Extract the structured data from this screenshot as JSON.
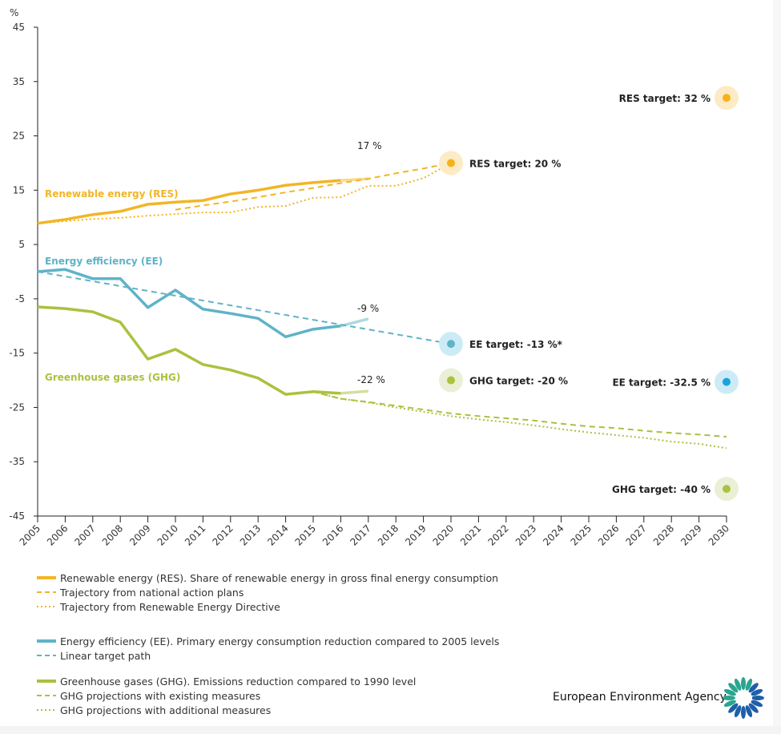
{
  "chart_data": {
    "type": "line",
    "ylabel": "%",
    "ylim": [
      -45,
      45
    ],
    "yticks": [
      45,
      35,
      25,
      15,
      5,
      -5,
      -15,
      -25,
      -35,
      -45
    ],
    "xlim": [
      2005,
      2030
    ],
    "x_ticks": [
      2005,
      2006,
      2007,
      2008,
      2009,
      2010,
      2011,
      2012,
      2013,
      2014,
      2015,
      2016,
      2017,
      2018,
      2019,
      2020,
      2021,
      2022,
      2023,
      2024,
      2025,
      2026,
      2027,
      2028,
      2029,
      2030
    ],
    "grid": false,
    "series": [
      {
        "name": "Renewable energy (RES). Share of renewable energy in gross final energy consumption",
        "label": "Renewable energy (RES)",
        "color": "#f2b527",
        "style": "solid",
        "x": [
          2005,
          2006,
          2007,
          2008,
          2009,
          2010,
          2011,
          2012,
          2013,
          2014,
          2015,
          2016,
          2017
        ],
        "y": [
          8.9,
          9.6,
          10.5,
          11.1,
          12.4,
          12.8,
          13.1,
          14.3,
          15.0,
          15.9,
          16.4,
          16.8,
          17.1
        ],
        "provisional_last": true
      },
      {
        "name": "Trajectory from national action plans",
        "color": "#f2b527",
        "style": "dashed",
        "x": [
          2010,
          2011,
          2012,
          2013,
          2014,
          2015,
          2016,
          2017,
          2018,
          2019,
          2020
        ],
        "y": [
          11.4,
          12.2,
          12.9,
          13.7,
          14.6,
          15.4,
          16.3,
          17.1,
          18.1,
          19.0,
          20.0
        ]
      },
      {
        "name": "Trajectory from Renewable Energy Directive",
        "color": "#f2b527",
        "style": "dotted",
        "x": [
          2005,
          2006,
          2007,
          2008,
          2009,
          2010,
          2011,
          2012,
          2013,
          2014,
          2015,
          2016,
          2017,
          2018,
          2019,
          2020
        ],
        "y": [
          8.9,
          9.3,
          9.7,
          9.9,
          10.3,
          10.6,
          10.9,
          10.9,
          11.9,
          12.1,
          13.6,
          13.7,
          15.8,
          15.8,
          17.2,
          20.0
        ]
      },
      {
        "name": "Energy efficiency (EE). Primary energy consumption reduction compared to 2005 levels",
        "label": "Energy efficiency (EE)",
        "color": "#5fb3c7",
        "style": "solid",
        "x": [
          2005,
          2006,
          2007,
          2008,
          2009,
          2010,
          2011,
          2012,
          2013,
          2014,
          2015,
          2016,
          2017
        ],
        "y": [
          0,
          0.4,
          -1.3,
          -1.3,
          -6.6,
          -3.4,
          -6.9,
          -7.7,
          -8.6,
          -12.0,
          -10.6,
          -10.0,
          -8.7
        ],
        "provisional_last": true
      },
      {
        "name": "Linear target path",
        "color": "#5fb3c7",
        "style": "dashed",
        "x": [
          2005,
          2020
        ],
        "y": [
          0,
          -13.3
        ]
      },
      {
        "name": "Greenhouse gases (GHG). Emissions reduction compared to 1990 level",
        "label": "Greenhouse gases (GHG)",
        "color": "#a9c23f",
        "style": "solid",
        "x": [
          2005,
          2006,
          2007,
          2008,
          2009,
          2010,
          2011,
          2012,
          2013,
          2014,
          2015,
          2016,
          2017
        ],
        "y": [
          -6.5,
          -6.8,
          -7.4,
          -9.3,
          -16.1,
          -14.3,
          -17.1,
          -18.1,
          -19.6,
          -22.6,
          -22.1,
          -22.4,
          -22.0
        ],
        "provisional_last": true
      },
      {
        "name": "GHG projections with existing measures",
        "color": "#a9c23f",
        "style": "dashed",
        "x": [
          2015,
          2016,
          2017,
          2018,
          2019,
          2020,
          2021,
          2022,
          2023,
          2024,
          2025,
          2026,
          2027,
          2028,
          2029,
          2030
        ],
        "y": [
          -22.1,
          -23.4,
          -24.0,
          -24.7,
          -25.4,
          -26.1,
          -26.6,
          -27.0,
          -27.4,
          -28.0,
          -28.5,
          -28.8,
          -29.3,
          -29.7,
          -30.0,
          -30.4
        ]
      },
      {
        "name": "GHG projections with additional measures",
        "color": "#a9c23f",
        "style": "dotted",
        "x": [
          2015,
          2016,
          2017,
          2018,
          2019,
          2020,
          2021,
          2022,
          2023,
          2024,
          2025,
          2026,
          2027,
          2028,
          2029,
          2030
        ],
        "y": [
          -22.1,
          -23.4,
          -24.1,
          -25.0,
          -25.8,
          -26.6,
          -27.2,
          -27.7,
          -28.3,
          -29.0,
          -29.6,
          -30.1,
          -30.6,
          -31.3,
          -31.7,
          -32.5
        ]
      }
    ],
    "end_labels": [
      "17 %",
      "-9 %",
      "-22 %"
    ],
    "targets": [
      {
        "label": "RES target: 32 %",
        "x": 2030,
        "y": 32,
        "color": "#f5b21b",
        "halo": "#fcebc4"
      },
      {
        "label": "RES target: 20 %",
        "x": 2020,
        "y": 20,
        "color": "#f5b21b",
        "halo": "#fcebc4"
      },
      {
        "label": "EE target: -13 %*",
        "x": 2020,
        "y": -13.3,
        "color": "#5fb3c7",
        "halo": "#cdebf6"
      },
      {
        "label": "GHG target: -20 %",
        "x": 2020,
        "y": -20,
        "color": "#a9c23f",
        "halo": "#eaf0d6"
      },
      {
        "label": "EE target: -32.5 %",
        "x": 2030,
        "y": -20.3,
        "color": "#1ba3dc",
        "halo": "#cdebf6"
      },
      {
        "label": "GHG target: -40 %",
        "x": 2030,
        "y": -40,
        "color": "#a9c23f",
        "halo": "#eaf0d6"
      }
    ]
  },
  "legend": {
    "groups": [
      [
        "Renewable energy (RES). Share of renewable energy in gross final energy consumption",
        "Trajectory from national action plans",
        "Trajectory from Renewable Energy Directive"
      ],
      [
        "Energy efficiency (EE). Primary energy consumption reduction compared to 2005 levels",
        "Linear target path"
      ],
      [
        "Greenhouse gases (GHG). Emissions reduction compared to 1990 level",
        "GHG projections with existing measures",
        "GHG projections with additional measures"
      ]
    ]
  },
  "brand": "European Environment Agency"
}
